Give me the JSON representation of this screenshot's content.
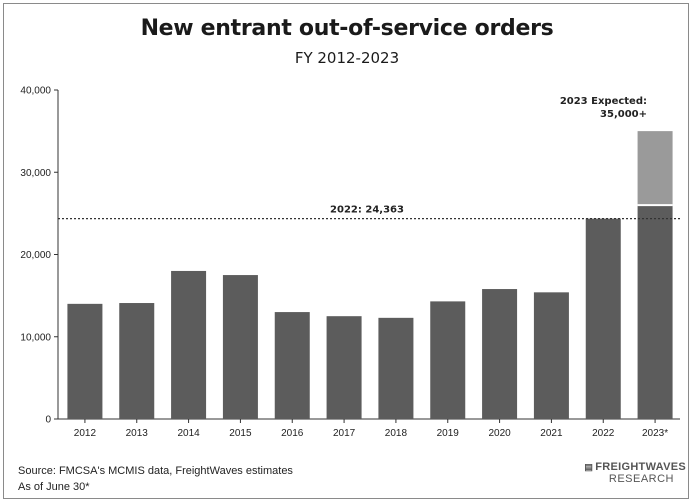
{
  "chart_data": {
    "type": "bar",
    "title": "New entrant out-of-service orders",
    "subtitle": "FY 2012-2023",
    "categories": [
      "2012",
      "2013",
      "2014",
      "2015",
      "2016",
      "2017",
      "2018",
      "2019",
      "2020",
      "2021",
      "2022",
      "2023*"
    ],
    "series": [
      {
        "values": [
          14000,
          14100,
          18000,
          17500,
          13000,
          12500,
          12300,
          14300,
          15800,
          15400,
          24363,
          26000
        ]
      },
      {
        "values": [
          0,
          0,
          0,
          0,
          0,
          0,
          0,
          0,
          0,
          0,
          0,
          9000
        ]
      }
    ],
    "ylim": [
      0,
      40000
    ],
    "yticks": [
      "0",
      "10,000",
      "20,000",
      "30,000",
      "40,000"
    ],
    "ytick_values": [
      0,
      10000,
      20000,
      30000,
      40000
    ],
    "xlabel": "",
    "ylabel": "",
    "grid": false,
    "reference_line": {
      "value": 24363,
      "label": "2022: 24,363"
    },
    "annotation": {
      "line1": "2023 Expected:",
      "line2": "35,000+"
    },
    "colors": {
      "bar": "#5c5c5c",
      "projected": "#9a9a9a",
      "refline": "#333333"
    }
  },
  "footer": {
    "source": "Source: FMCSA's MCMIS data, FreightWaves estimates",
    "note": "As of June 30*"
  },
  "brand": {
    "top": "FREIGHTWAVES",
    "bottom": "RESEARCH",
    "icon": "freightwaves-logo-icon"
  }
}
